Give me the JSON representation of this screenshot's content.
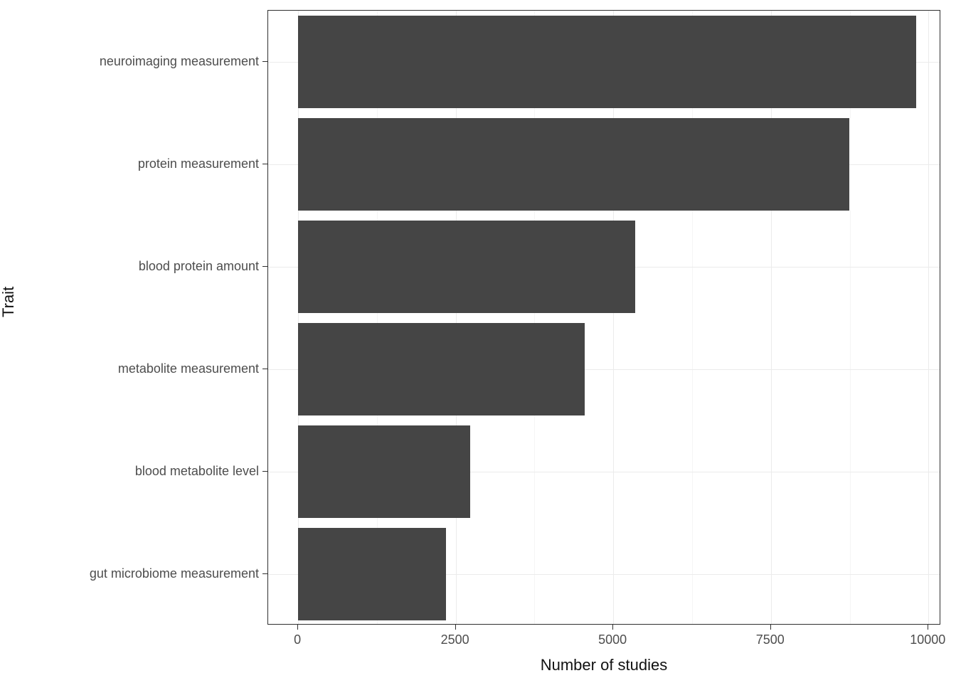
{
  "chart_data": {
    "type": "bar",
    "orientation": "horizontal",
    "title": "",
    "xlabel": "Number of studies",
    "ylabel": "Trait",
    "categories": [
      "neuroimaging measurement",
      "protein measurement",
      "blood protein amount",
      "metabolite measurement",
      "blood metabolite level",
      "gut microbiome measurement"
    ],
    "values": [
      9800,
      8750,
      5350,
      4550,
      2730,
      2350
    ],
    "xticks": [
      0,
      2500,
      5000,
      7500,
      10000
    ],
    "xtick_labels": [
      "0",
      "2500",
      "5000",
      "7500",
      "10000"
    ],
    "xlim": [
      0,
      10000
    ],
    "grid": true,
    "legend": "none"
  },
  "colors": {
    "bar_fill": "#454545",
    "panel_border": "#2f2f2f",
    "axis_text": "#4d4d4d",
    "axis_title": "#111111",
    "grid_major": "#ebebeb",
    "grid_minor": "#f5f5f5"
  }
}
